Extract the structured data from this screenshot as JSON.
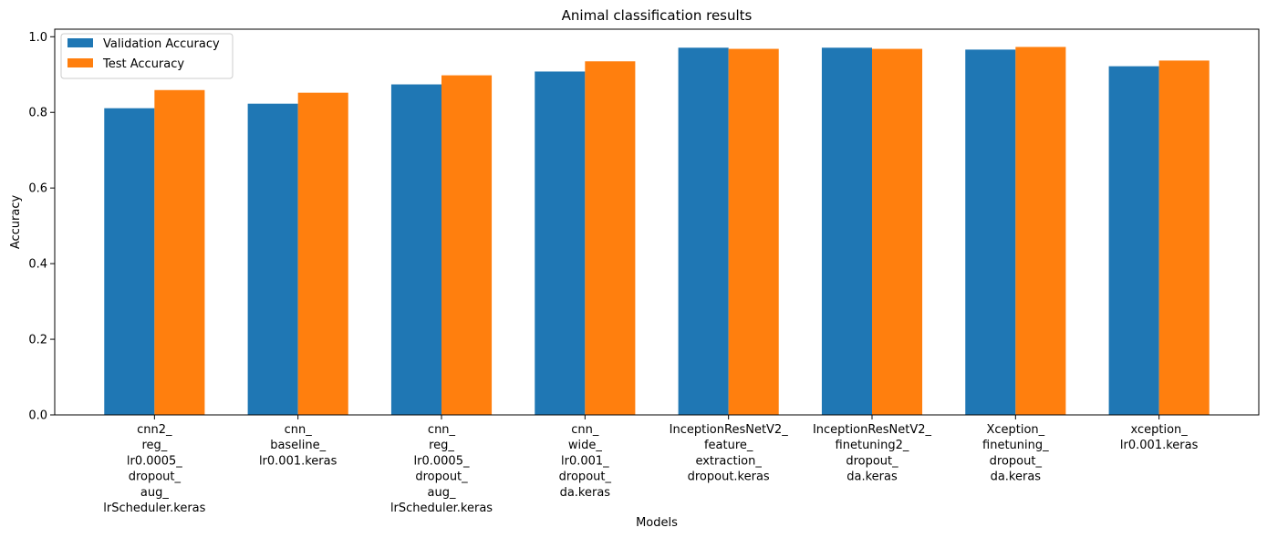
{
  "chart_data": {
    "type": "bar",
    "title": "Animal classification results",
    "xlabel": "Models",
    "ylabel": "Accuracy",
    "ylim": [
      0,
      1.02
    ],
    "yticks": [
      "0.0",
      "0.2",
      "0.4",
      "0.6",
      "0.8",
      "1.0"
    ],
    "grid": false,
    "legend_position": "top-left",
    "categories": [
      "cnn2_\nreg_\nlr0.0005_\ndropout_\naug_\nlrScheduler.keras",
      "cnn_\nbaseline_\nlr0.001.keras",
      "cnn_\nreg_\nlr0.0005_\ndropout_\naug_\nlrScheduler.keras",
      "cnn_\nwide_\nlr0.001_\ndropout_\nda.keras",
      "InceptionResNetV2_\nfeature_\nextraction_\ndropout.keras",
      "InceptionResNetV2_\nfinetuning2_\ndropout_\nda.keras",
      "Xception_\nfinetuning_\ndropout_\nda.keras",
      "xception_\nlr0.001.keras"
    ],
    "series": [
      {
        "name": "Validation Accuracy",
        "color": "#1f77b4",
        "values": [
          0.811,
          0.823,
          0.874,
          0.908,
          0.971,
          0.971,
          0.966,
          0.922
        ]
      },
      {
        "name": "Test Accuracy",
        "color": "#ff7f0e",
        "values": [
          0.859,
          0.852,
          0.898,
          0.935,
          0.968,
          0.968,
          0.973,
          0.937
        ]
      }
    ]
  }
}
